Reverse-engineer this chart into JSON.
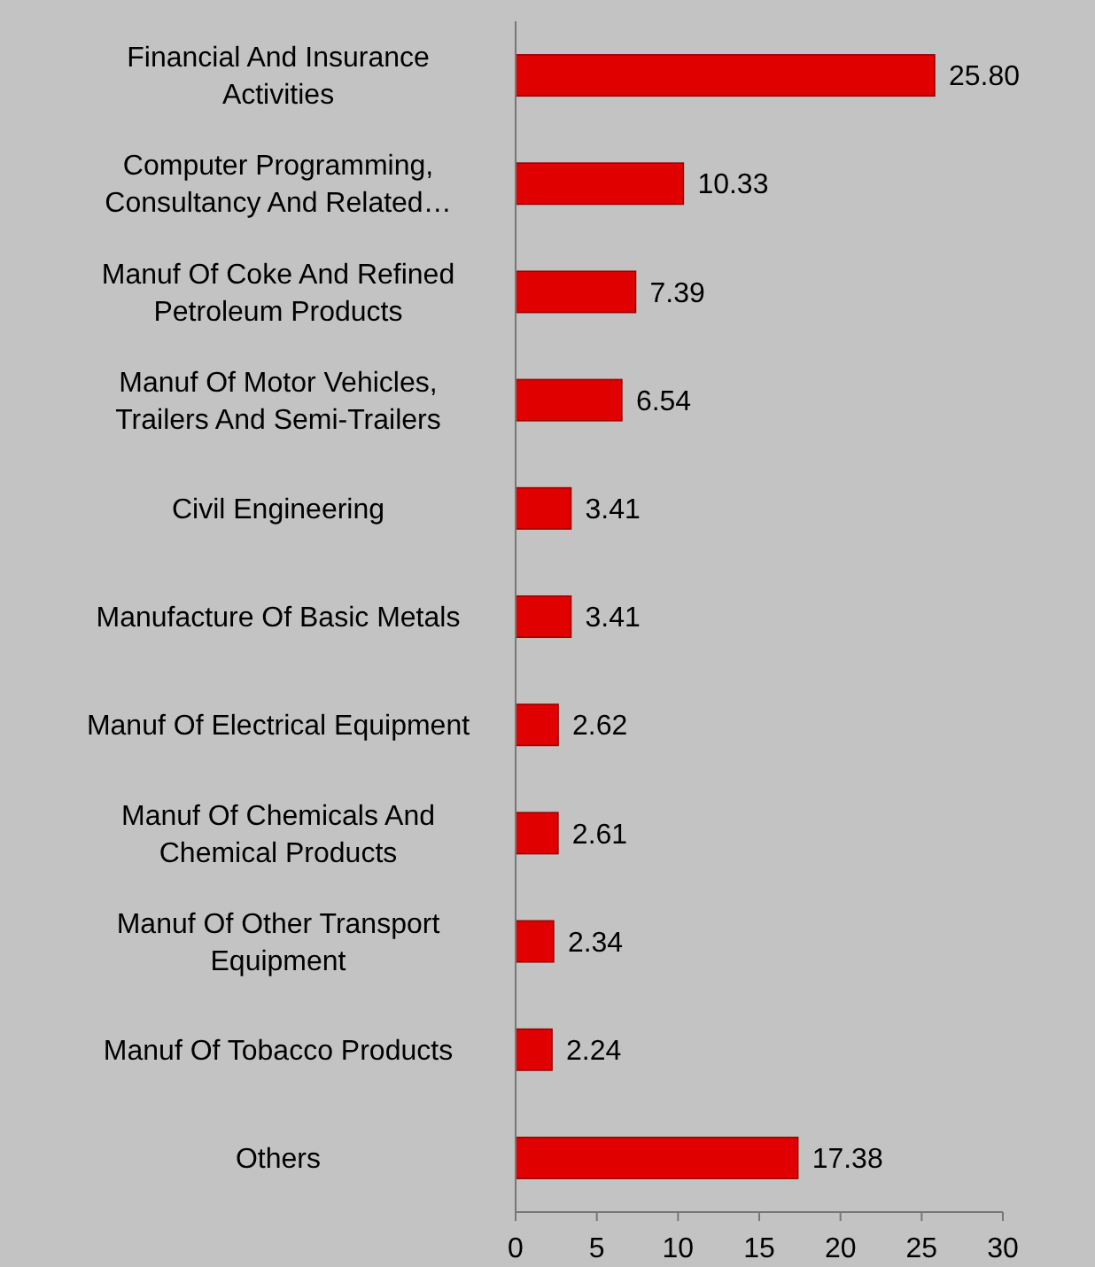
{
  "chart_data": {
    "type": "bar",
    "orientation": "horizontal",
    "categories": [
      "Financial And Insurance Activities",
      "Computer Programming, Consultancy And Related…",
      "Manuf Of Coke And Refined Petroleum Products",
      "Manuf Of Motor Vehicles, Trailers And Semi-Trailers",
      "Civil Engineering",
      "Manufacture Of Basic Metals",
      "Manuf Of Electrical Equipment",
      "Manuf Of Chemicals And Chemical Products",
      "Manuf Of Other Transport Equipment",
      "Manuf Of Tobacco Products",
      "Others"
    ],
    "values": [
      25.8,
      10.33,
      7.39,
      6.54,
      3.41,
      3.41,
      2.62,
      2.61,
      2.34,
      2.24,
      17.38
    ],
    "value_labels": [
      "25.80",
      "10.33",
      "7.39",
      "6.54",
      "3.41",
      "3.41",
      "2.62",
      "2.61",
      "2.34",
      "2.24",
      "17.38"
    ],
    "color": "#e00000",
    "xlim": [
      0,
      30
    ],
    "xticks": [
      0,
      5,
      10,
      15,
      20,
      25,
      30
    ],
    "grid": false
  }
}
